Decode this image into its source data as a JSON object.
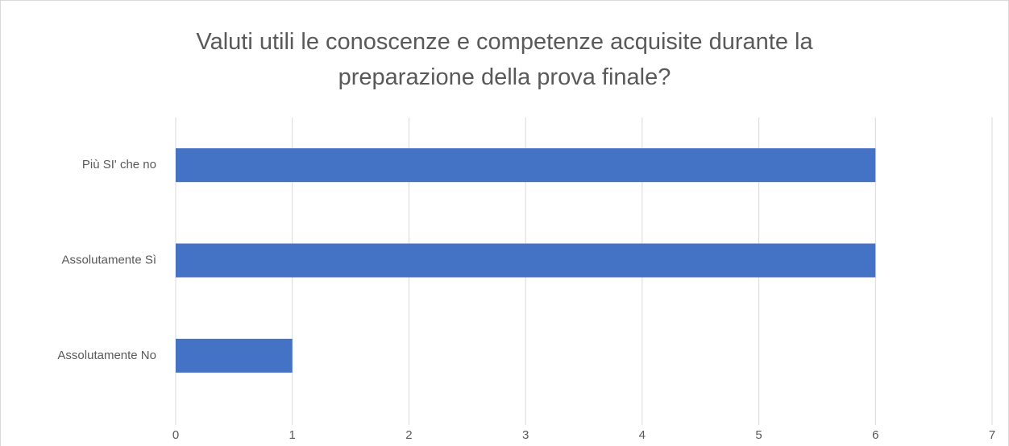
{
  "chart_data": {
    "type": "bar",
    "orientation": "horizontal",
    "title": "Valuti utili le conoscenze e competenze acquisite durante la preparazione della prova finale?",
    "categories": [
      "Più SI' che no",
      "Assolutamente Sì",
      "Assolutamente No"
    ],
    "values": [
      6,
      6,
      1
    ],
    "color": "#4472c4",
    "xlim": [
      0,
      7
    ],
    "xticks": [
      0,
      1,
      2,
      3,
      4,
      5,
      6,
      7
    ],
    "grid": true
  }
}
